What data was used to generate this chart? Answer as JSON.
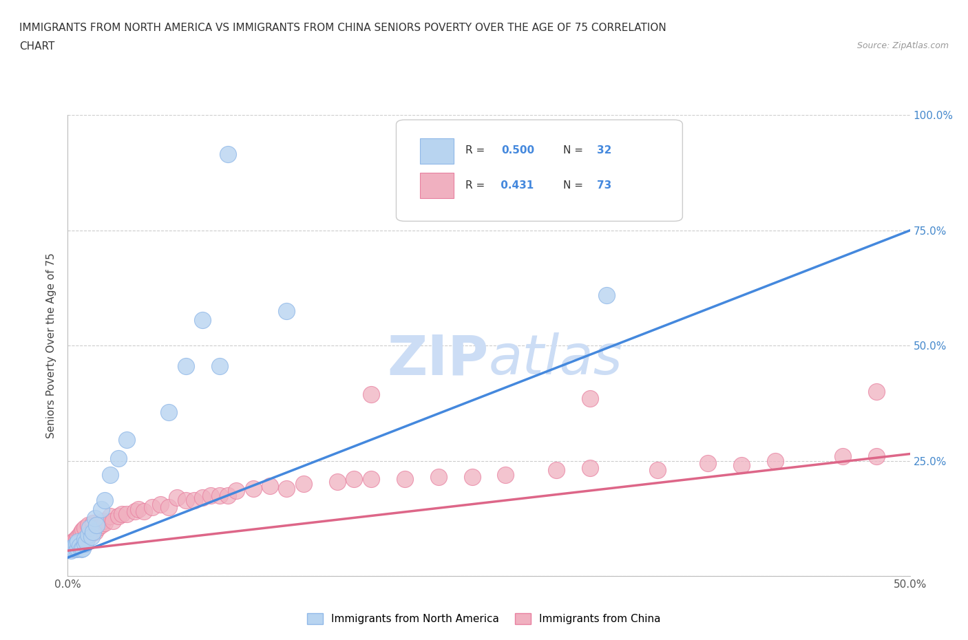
{
  "title_line1": "IMMIGRANTS FROM NORTH AMERICA VS IMMIGRANTS FROM CHINA SENIORS POVERTY OVER THE AGE OF 75 CORRELATION",
  "title_line2": "CHART",
  "source": "Source: ZipAtlas.com",
  "ylabel": "Seniors Poverty Over the Age of 75",
  "legend_label1": "Immigrants from North America",
  "legend_label2": "Immigrants from China",
  "R1": 0.5,
  "N1": 32,
  "R2": 0.431,
  "N2": 73,
  "color1": "#b8d4f0",
  "color1_edge": "#90b8e8",
  "color2": "#f0b0c0",
  "color2_edge": "#e880a0",
  "line1_color": "#4488dd",
  "line2_color": "#dd6688",
  "watermark_color": "#ccddf5",
  "background": "#ffffff",
  "xlim": [
    0.0,
    0.5
  ],
  "ylim": [
    0.0,
    1.0
  ],
  "xticks": [
    0.0,
    0.1,
    0.2,
    0.3,
    0.4,
    0.5
  ],
  "yticks": [
    0.0,
    0.25,
    0.5,
    0.75,
    1.0
  ],
  "grid_color": "#cccccc",
  "line1_x0": 0.0,
  "line1_y0": 0.04,
  "line1_x1": 0.5,
  "line1_y1": 0.75,
  "line2_x0": 0.0,
  "line2_y0": 0.055,
  "line2_x1": 0.5,
  "line2_y1": 0.265,
  "na_x": [
    0.001,
    0.002,
    0.003,
    0.004,
    0.005,
    0.005,
    0.006,
    0.006,
    0.007,
    0.008,
    0.009,
    0.01,
    0.01,
    0.011,
    0.012,
    0.013,
    0.014,
    0.015,
    0.016,
    0.017,
    0.02,
    0.022,
    0.025,
    0.03,
    0.035,
    0.06,
    0.07,
    0.08,
    0.09,
    0.13,
    0.32,
    0.095
  ],
  "na_y": [
    0.06,
    0.055,
    0.06,
    0.065,
    0.058,
    0.07,
    0.06,
    0.075,
    0.065,
    0.058,
    0.06,
    0.07,
    0.08,
    0.075,
    0.09,
    0.105,
    0.085,
    0.095,
    0.125,
    0.11,
    0.145,
    0.165,
    0.22,
    0.255,
    0.295,
    0.355,
    0.455,
    0.555,
    0.455,
    0.575,
    0.61,
    0.915
  ],
  "cn_x": [
    0.001,
    0.002,
    0.002,
    0.003,
    0.003,
    0.004,
    0.004,
    0.005,
    0.005,
    0.006,
    0.006,
    0.007,
    0.007,
    0.008,
    0.008,
    0.009,
    0.009,
    0.01,
    0.01,
    0.011,
    0.012,
    0.012,
    0.013,
    0.014,
    0.015,
    0.015,
    0.016,
    0.017,
    0.018,
    0.02,
    0.021,
    0.022,
    0.025,
    0.027,
    0.03,
    0.032,
    0.035,
    0.04,
    0.042,
    0.045,
    0.05,
    0.055,
    0.06,
    0.065,
    0.07,
    0.075,
    0.08,
    0.085,
    0.09,
    0.095,
    0.1,
    0.11,
    0.12,
    0.13,
    0.14,
    0.16,
    0.17,
    0.18,
    0.2,
    0.22,
    0.24,
    0.26,
    0.29,
    0.31,
    0.35,
    0.38,
    0.4,
    0.42,
    0.46,
    0.48,
    0.18,
    0.31,
    0.48
  ],
  "cn_y": [
    0.065,
    0.06,
    0.07,
    0.058,
    0.075,
    0.062,
    0.078,
    0.06,
    0.08,
    0.065,
    0.085,
    0.068,
    0.09,
    0.07,
    0.095,
    0.072,
    0.1,
    0.068,
    0.105,
    0.08,
    0.085,
    0.11,
    0.09,
    0.095,
    0.1,
    0.115,
    0.095,
    0.11,
    0.105,
    0.11,
    0.12,
    0.115,
    0.13,
    0.12,
    0.13,
    0.135,
    0.135,
    0.14,
    0.145,
    0.14,
    0.15,
    0.155,
    0.15,
    0.17,
    0.165,
    0.165,
    0.17,
    0.175,
    0.175,
    0.175,
    0.185,
    0.19,
    0.195,
    0.19,
    0.2,
    0.205,
    0.21,
    0.21,
    0.21,
    0.215,
    0.215,
    0.22,
    0.23,
    0.235,
    0.23,
    0.245,
    0.24,
    0.25,
    0.26,
    0.26,
    0.395,
    0.385,
    0.4
  ]
}
